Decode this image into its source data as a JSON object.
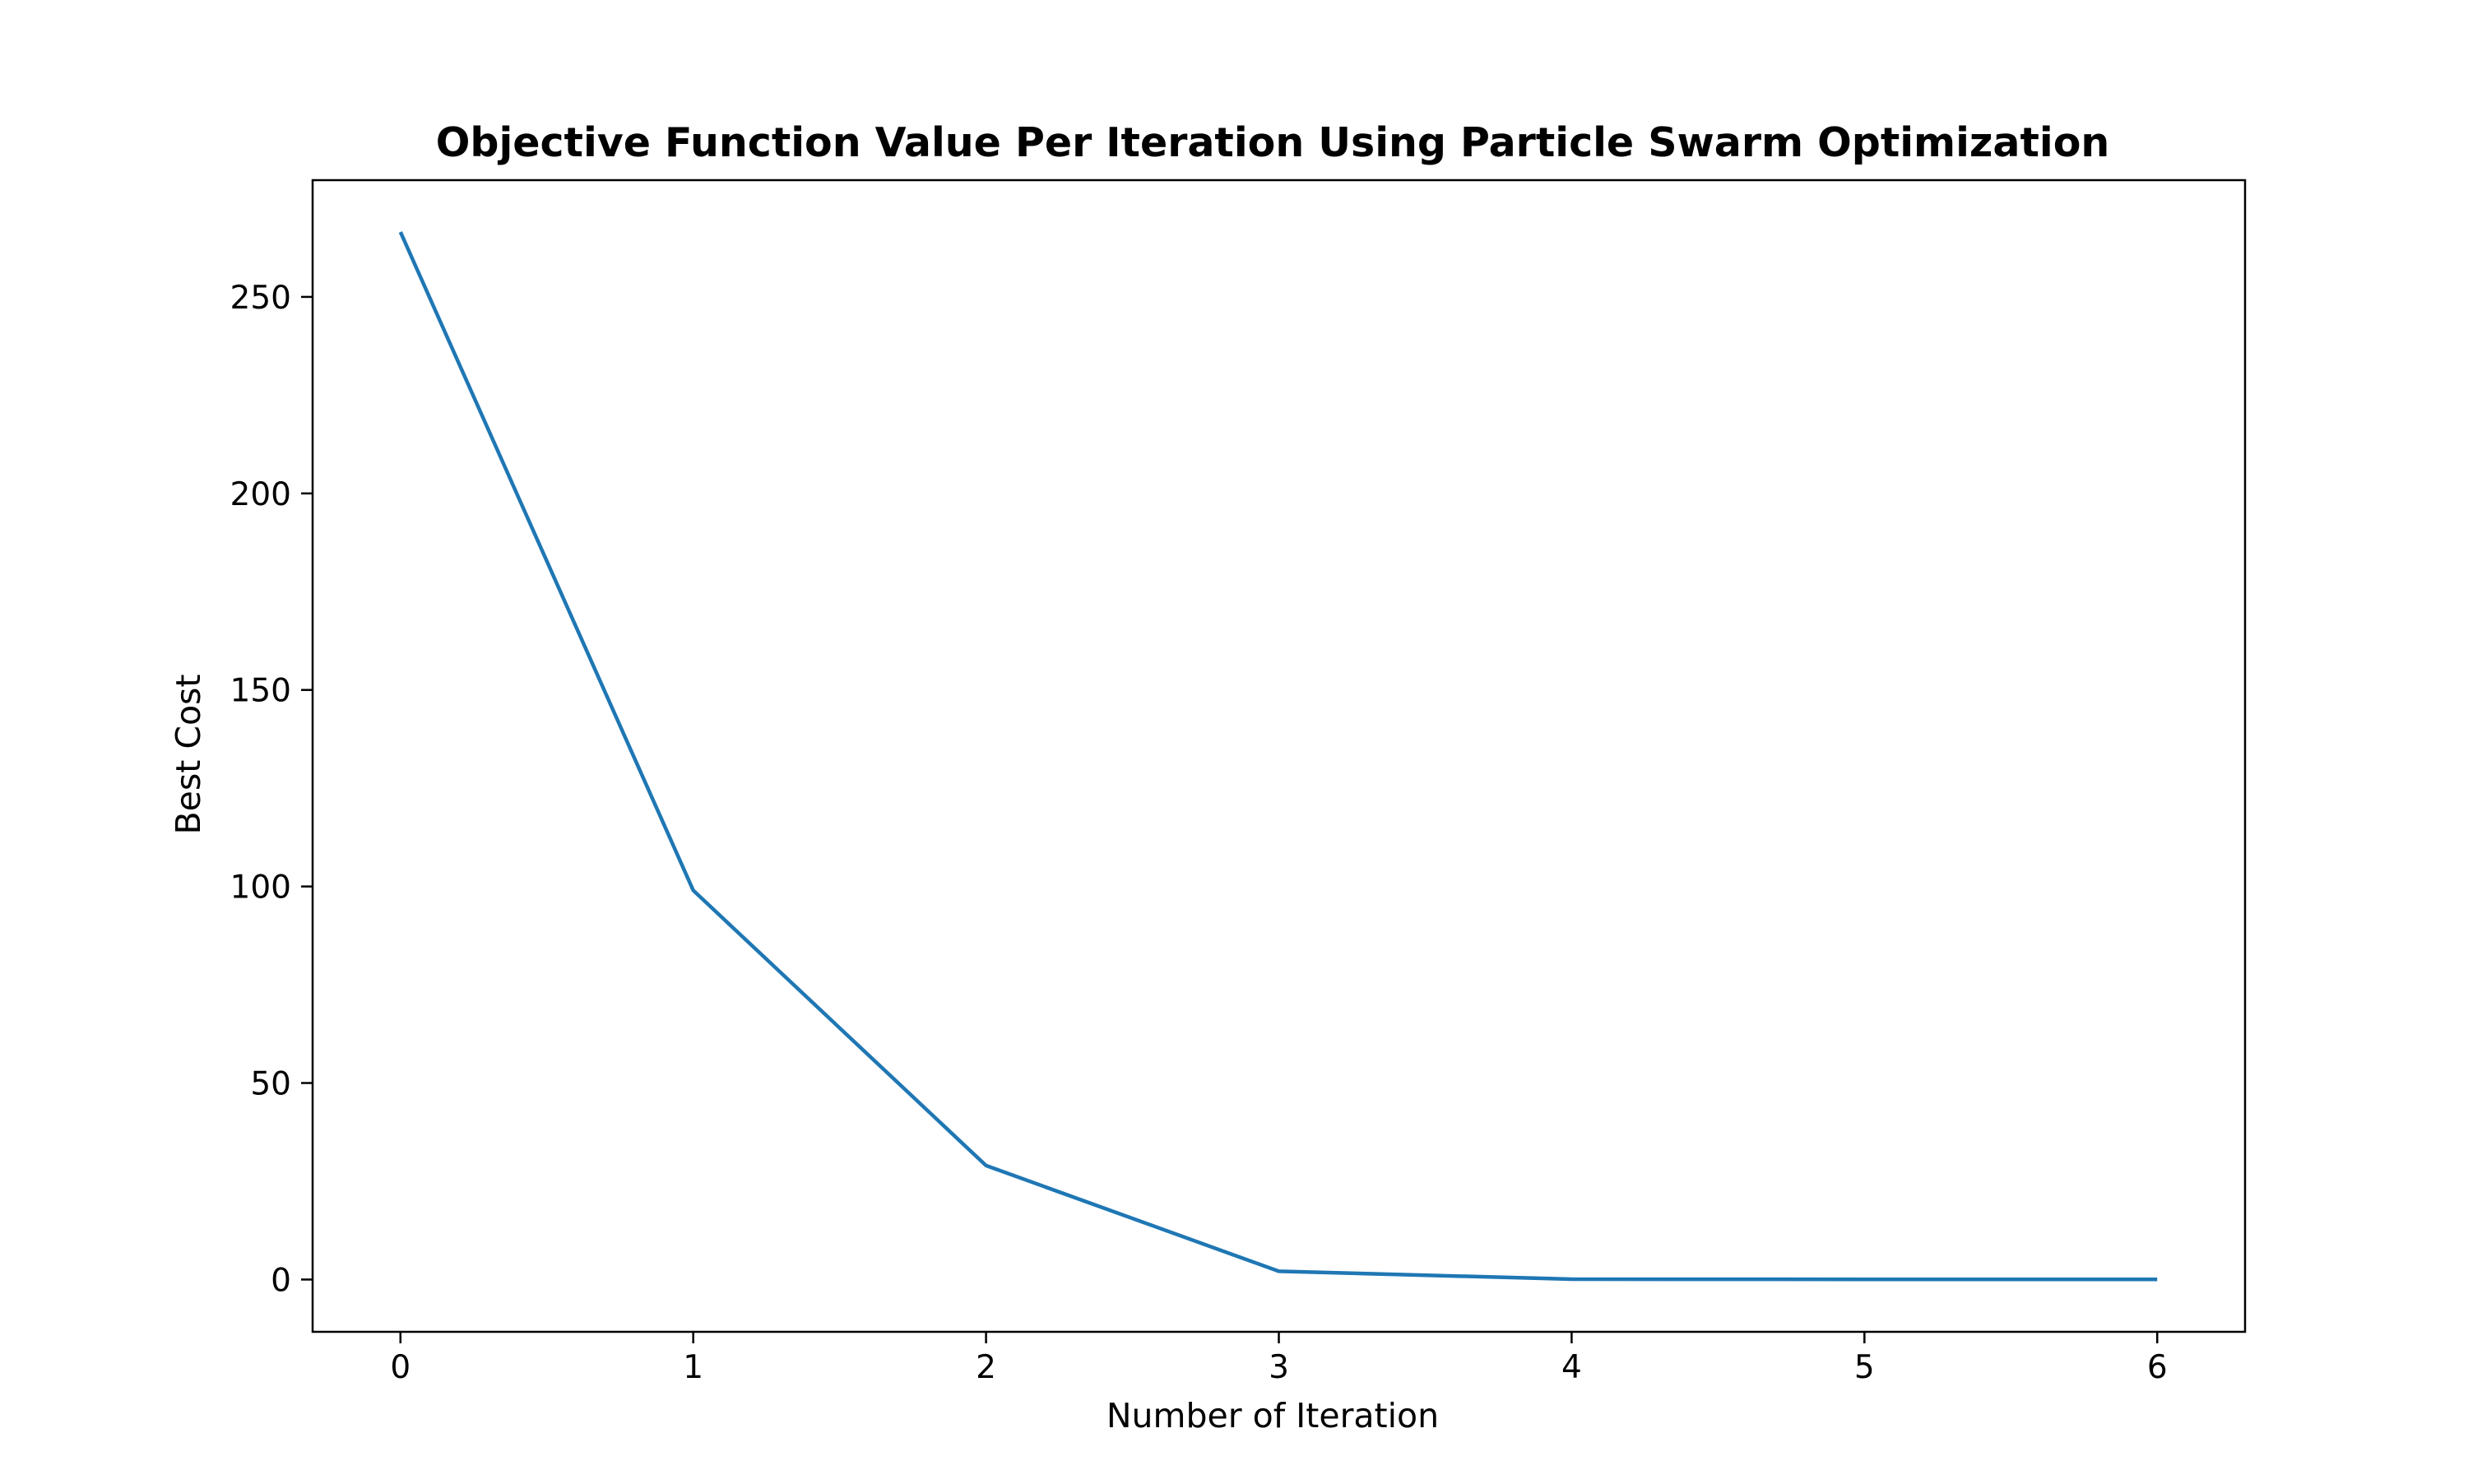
{
  "chart_data": {
    "type": "line",
    "title": "Objective Function Value Per Iteration Using Particle Swarm Optimization",
    "xlabel": "Number of Iteration",
    "ylabel": "Best Cost",
    "x": [
      0,
      1,
      2,
      3,
      4,
      5,
      6
    ],
    "series": [
      {
        "values": [
          266.5,
          99.0,
          29.0,
          2.1,
          0.1,
          0.05,
          0.05
        ],
        "color": "#1f77b4"
      }
    ],
    "xlim": [
      -0.3,
      6.3
    ],
    "ylim": [
      -13.3,
      279.7
    ],
    "xticks": [
      0,
      1,
      2,
      3,
      4,
      5,
      6
    ],
    "yticks": [
      0,
      50,
      100,
      150,
      200,
      250
    ],
    "xtick_labels": [
      "0",
      "1",
      "2",
      "3",
      "4",
      "5",
      "6"
    ],
    "ytick_labels": [
      "0",
      "50",
      "100",
      "150",
      "200",
      "250"
    ],
    "grid": false,
    "legend": "none"
  }
}
